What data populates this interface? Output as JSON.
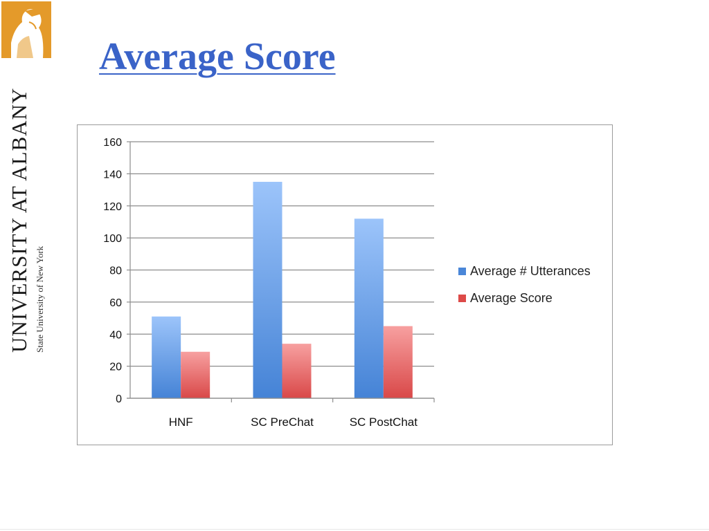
{
  "slide": {
    "title": "Average Score",
    "logo": {
      "main_text": "UNIVERSITY AT ALBANY",
      "sub_text": "State University of New York",
      "emblem_icon": "minerva-emblem-icon",
      "emblem_color": "#e49a2a"
    }
  },
  "chart_data": {
    "type": "bar",
    "categories": [
      "HNF",
      "SC PreChat",
      "SC PostChat"
    ],
    "series": [
      {
        "name": "Average # Utterances",
        "values": [
          51,
          135,
          112
        ],
        "color": "#4a86d8"
      },
      {
        "name": "Average Score",
        "values": [
          29,
          34,
          45
        ],
        "color": "#dd4a48"
      }
    ],
    "title": "",
    "xlabel": "",
    "ylabel": "",
    "ylim": [
      0,
      160
    ],
    "yticks": [
      0,
      20,
      40,
      60,
      80,
      100,
      120,
      140,
      160
    ],
    "grid": true,
    "legend_position": "right"
  }
}
